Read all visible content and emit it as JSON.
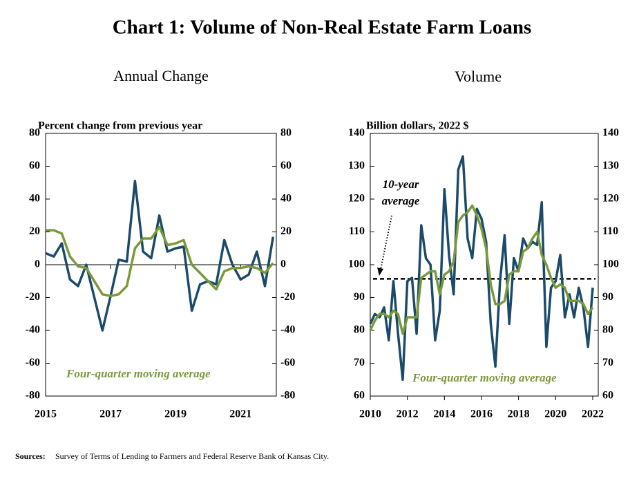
{
  "title": "Chart 1: Volume of Non-Real Estate Farm Loans",
  "source": {
    "label": "Sources:",
    "text": "Survey of Terms of Lending to Farmers and Federal Reserve Bank of Kansas City."
  },
  "chart_data": [
    {
      "type": "line",
      "subtitle": "Annual Change",
      "y_label": "Percent change from previous year",
      "x": [
        2015,
        2015.25,
        2015.5,
        2015.75,
        2016,
        2016.25,
        2016.5,
        2016.75,
        2017,
        2017.25,
        2017.5,
        2017.75,
        2018,
        2018.25,
        2018.5,
        2018.75,
        2019,
        2019.25,
        2019.5,
        2019.75,
        2020,
        2020.25,
        2020.5,
        2020.75,
        2021,
        2021.25,
        2021.5,
        2021.75,
        2022
      ],
      "series": [
        {
          "color": "#1b4a6b",
          "values": [
            7,
            5,
            13,
            -9,
            -13,
            0,
            -20,
            -40,
            -19,
            3,
            2,
            51,
            8,
            4,
            30,
            8,
            10,
            11,
            -28,
            -12,
            -10,
            -12,
            15,
            0,
            -9,
            -6,
            8,
            -13,
            17
          ]
        },
        {
          "color": "#7a9a3a",
          "values": [
            21,
            21,
            19,
            5,
            -1,
            -2,
            -10,
            -18,
            -19,
            -18,
            -13,
            10,
            16,
            16,
            23,
            12,
            13,
            15,
            0,
            -5,
            -10,
            -15,
            -4,
            -2,
            -2,
            -1,
            -2,
            -5,
            1
          ]
        }
      ],
      "annotation": "Four-quarter moving average",
      "xlim": [
        2015,
        2022.1
      ],
      "xticks": [
        2015,
        2017,
        2019,
        2021
      ],
      "ylim": [
        -80,
        80
      ],
      "yticks": [
        -80,
        -60,
        -40,
        -20,
        0,
        20,
        40,
        60,
        80
      ],
      "y2lim": [
        -80,
        80
      ],
      "y2ticks": [
        -80,
        -60,
        -40,
        -20,
        0,
        20,
        40,
        60,
        80
      ],
      "zero_line": true
    },
    {
      "type": "line",
      "subtitle": "Volume",
      "y_label": "Billion dollars,  2022 $",
      "x": [
        2010,
        2010.25,
        2010.5,
        2010.75,
        2011,
        2011.25,
        2011.5,
        2011.75,
        2012,
        2012.25,
        2012.5,
        2012.75,
        2013,
        2013.25,
        2013.5,
        2013.75,
        2014,
        2014.25,
        2014.5,
        2014.75,
        2015,
        2015.25,
        2015.5,
        2015.75,
        2016,
        2016.25,
        2016.5,
        2016.75,
        2017,
        2017.25,
        2017.5,
        2017.75,
        2018,
        2018.25,
        2018.5,
        2018.75,
        2019,
        2019.25,
        2019.5,
        2019.75,
        2020,
        2020.25,
        2020.5,
        2020.75,
        2021,
        2021.25,
        2021.5,
        2021.75,
        2022
      ],
      "series": [
        {
          "color": "#1b4a6b",
          "values": [
            82,
            85,
            84,
            87,
            77,
            95,
            79,
            65,
            95,
            96,
            79,
            112,
            102,
            100,
            77,
            86,
            123,
            103,
            91,
            129,
            133,
            108,
            102,
            117,
            114,
            107,
            82,
            69,
            95,
            109,
            82,
            102,
            98,
            108,
            105,
            107,
            106,
            119,
            75,
            93,
            95,
            103,
            84,
            91,
            84,
            93,
            87,
            75,
            93
          ]
        },
        {
          "color": "#7a9a3a",
          "values": [
            80,
            83,
            85,
            85,
            84,
            86,
            85,
            79,
            84,
            84,
            84,
            96,
            97,
            98,
            98,
            91,
            97,
            98,
            101,
            113,
            115,
            116,
            118,
            115,
            111,
            105,
            94,
            88,
            88,
            89,
            97,
            98,
            98,
            104,
            105,
            108,
            110,
            103,
            100,
            96,
            93,
            94,
            93,
            89,
            89,
            89,
            88,
            85,
            87
          ]
        }
      ],
      "reference_line": {
        "value": 95.7,
        "label": [
          "10-year",
          "average"
        ]
      },
      "annotation": "Four-quarter moving average",
      "xlim": [
        2010,
        2022.3
      ],
      "xticks": [
        2010,
        2012,
        2014,
        2016,
        2018,
        2020,
        2022
      ],
      "ylim": [
        60,
        140
      ],
      "yticks": [
        60,
        70,
        80,
        90,
        100,
        110,
        120,
        130,
        140
      ],
      "y2lim": [
        60,
        140
      ],
      "y2ticks": [
        60,
        70,
        80,
        90,
        100,
        110,
        120,
        130,
        140
      ],
      "zero_line": false
    }
  ]
}
